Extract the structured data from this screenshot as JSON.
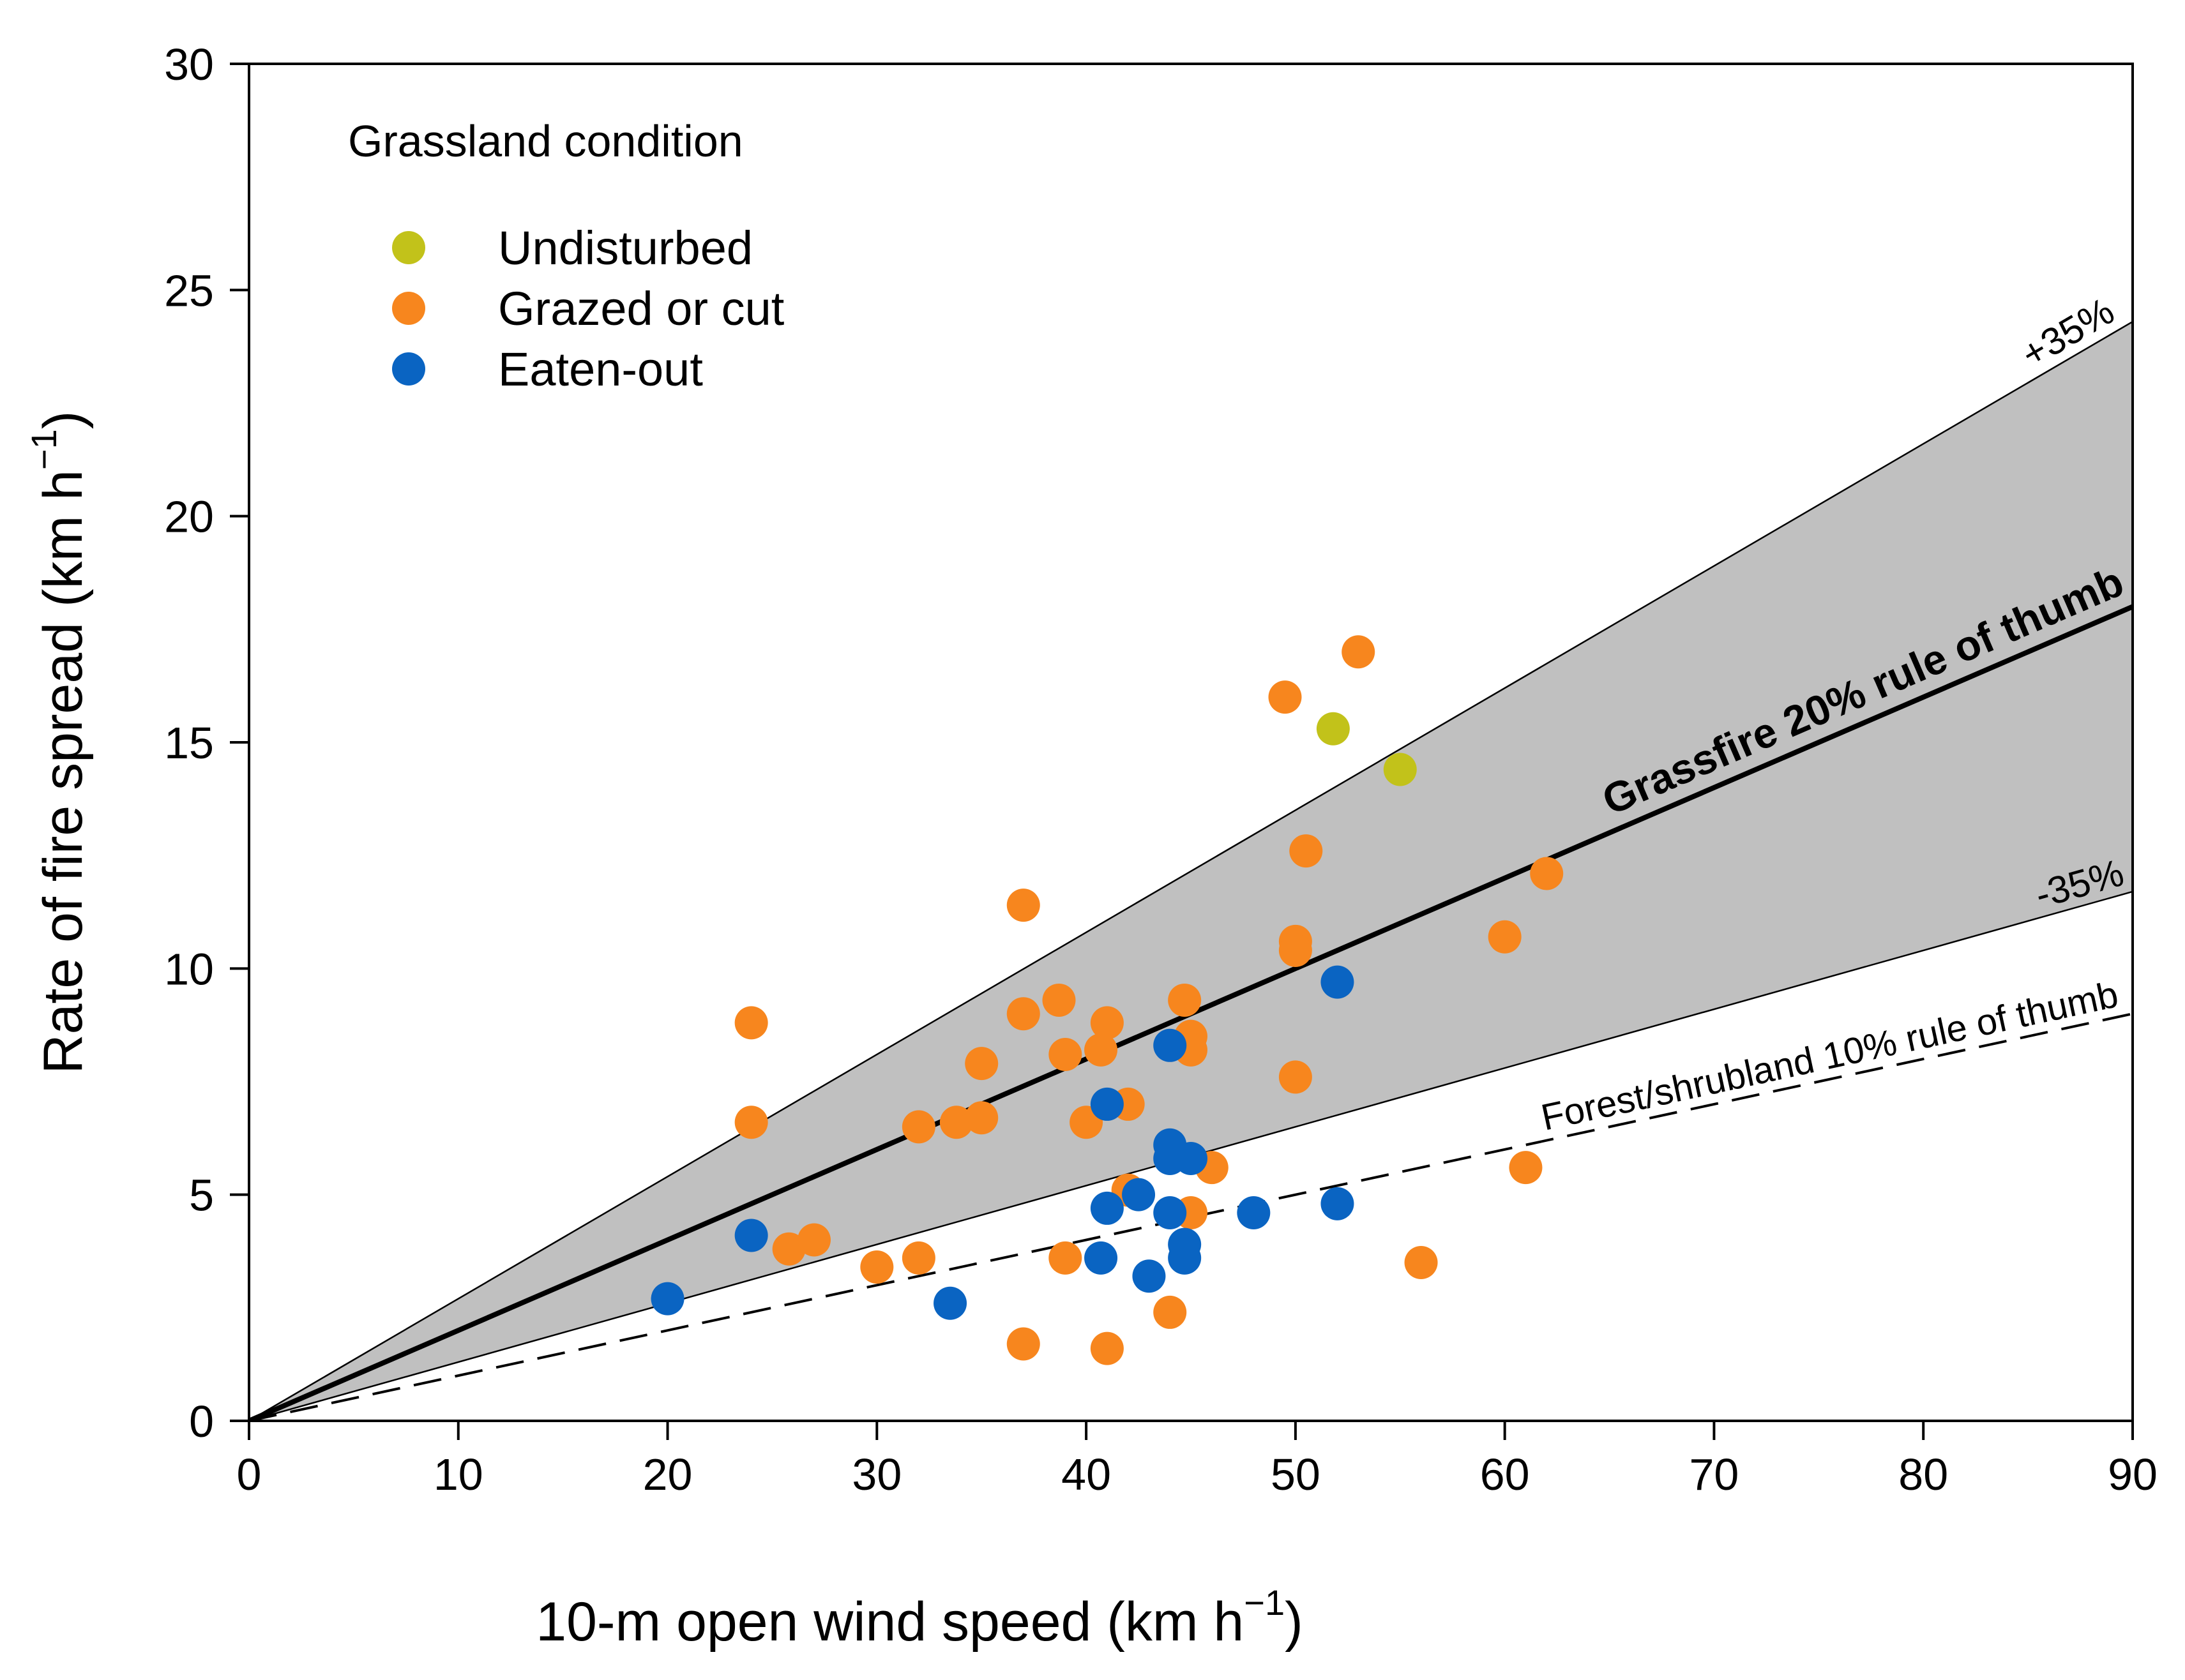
{
  "chart_data": {
    "type": "scatter",
    "xlabel_main": "10-m open wind speed (km h",
    "xlabel_sup": "−1",
    "xlabel_close": ")",
    "ylabel_main": "Rate of fire spread (km h",
    "ylabel_sup": "−1",
    "ylabel_close": ")",
    "xlim": [
      0,
      90
    ],
    "ylim": [
      0,
      30
    ],
    "x_ticks": [
      "0",
      "10",
      "20",
      "30",
      "40",
      "50",
      "60",
      "70",
      "80",
      "90"
    ],
    "y_ticks": [
      "0",
      "5",
      "10",
      "15",
      "20",
      "25",
      "30"
    ],
    "legend": {
      "title": "Grassland condition",
      "placement": "top-left",
      "entries": [
        {
          "label": "Undisturbed",
          "color": "#c2c21a"
        },
        {
          "label": "Grazed or cut",
          "color": "#f7861e"
        },
        {
          "label": "Eaten-out",
          "color": "#0a64c2"
        }
      ]
    },
    "lines": [
      {
        "label": "Grassfire 20% rule of thumb",
        "slope": 0.2,
        "style": "solid-thick"
      },
      {
        "label": "+35%",
        "slope": 0.27,
        "style": "solid-thin"
      },
      {
        "label": "-35%",
        "slope": 0.13,
        "style": "solid-thin"
      },
      {
        "label": "Forest/shrubland 10% rule of thumb",
        "slope": 0.1,
        "style": "dashed"
      }
    ],
    "band_color": "#c0c0c0",
    "series": [
      {
        "name": "Undisturbed",
        "color": "#c2c21a",
        "points": [
          [
            51.8,
            15.3
          ],
          [
            55,
            14.4
          ]
        ]
      },
      {
        "name": "Grazed or cut",
        "color": "#f7861e",
        "points": [
          [
            24,
            8.8
          ],
          [
            24,
            6.6
          ],
          [
            25.8,
            3.8
          ],
          [
            27,
            4.0
          ],
          [
            30,
            3.4
          ],
          [
            32,
            6.5
          ],
          [
            32,
            3.6
          ],
          [
            33.8,
            6.6
          ],
          [
            35,
            7.9
          ],
          [
            35,
            6.7
          ],
          [
            37,
            11.4
          ],
          [
            37,
            9.0
          ],
          [
            37,
            1.7
          ],
          [
            38.7,
            9.3
          ],
          [
            39,
            8.1
          ],
          [
            39,
            3.6
          ],
          [
            40,
            6.6
          ],
          [
            40.7,
            8.2
          ],
          [
            41,
            8.8
          ],
          [
            41,
            1.6
          ],
          [
            42,
            7.0
          ],
          [
            42,
            5.1
          ],
          [
            44,
            2.4
          ],
          [
            44.7,
            9.3
          ],
          [
            45,
            8.5
          ],
          [
            45,
            8.2
          ],
          [
            45,
            4.6
          ],
          [
            46,
            5.6
          ],
          [
            49.5,
            16.0
          ],
          [
            50,
            10.6
          ],
          [
            50,
            10.4
          ],
          [
            50,
            7.6
          ],
          [
            50.5,
            12.6
          ],
          [
            53,
            17.0
          ],
          [
            56,
            3.5
          ],
          [
            60,
            10.7
          ],
          [
            61,
            5.6
          ],
          [
            62,
            12.1
          ]
        ]
      },
      {
        "name": "Eaten-out",
        "color": "#0a64c2",
        "points": [
          [
            20,
            2.7
          ],
          [
            24,
            4.1
          ],
          [
            33.5,
            2.6
          ],
          [
            40.7,
            3.6
          ],
          [
            41,
            7.0
          ],
          [
            41,
            4.7
          ],
          [
            42.5,
            5.0
          ],
          [
            43,
            3.2
          ],
          [
            44,
            8.3
          ],
          [
            44,
            6.1
          ],
          [
            44,
            5.8
          ],
          [
            44,
            4.6
          ],
          [
            44.7,
            3.9
          ],
          [
            44.7,
            3.6
          ],
          [
            45,
            5.8
          ],
          [
            48,
            4.6
          ],
          [
            52,
            9.7
          ],
          [
            52,
            4.8
          ]
        ]
      }
    ]
  }
}
